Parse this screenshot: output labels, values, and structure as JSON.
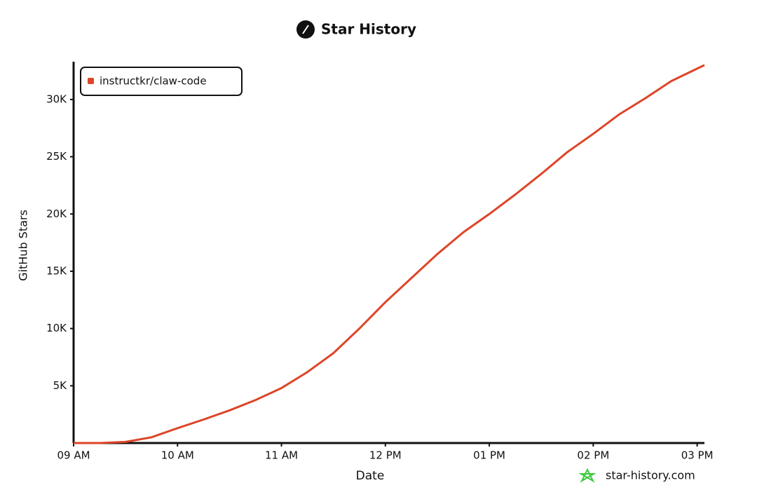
{
  "chart_data": {
    "type": "line",
    "title": "Star History",
    "xlabel": "Date",
    "ylabel": "GitHub Stars",
    "watermark": "star-history.com",
    "x": [
      9.0,
      9.25,
      9.5,
      9.75,
      10.0,
      10.25,
      10.5,
      10.75,
      11.0,
      11.25,
      11.5,
      11.75,
      12.0,
      12.25,
      12.5,
      12.75,
      13.0,
      13.25,
      13.5,
      13.75,
      14.0,
      14.25,
      14.5,
      14.75,
      15.07
    ],
    "series": [
      {
        "name": "instructkr/claw-code",
        "color": "#dd4528",
        "values": [
          0,
          0,
          100,
          500,
          1300,
          2050,
          2850,
          3750,
          4800,
          6200,
          7850,
          10000,
          12300,
          14400,
          16500,
          18400,
          20000,
          21700,
          23500,
          25400,
          27000,
          28700,
          30100,
          31600,
          33000
        ]
      }
    ],
    "xlim": [
      9.0,
      15.07
    ],
    "ylim": [
      0,
      33300
    ],
    "xticks": [
      {
        "value": 9,
        "label": "09 AM"
      },
      {
        "value": 10,
        "label": "10 AM"
      },
      {
        "value": 11,
        "label": "11 AM"
      },
      {
        "value": 12,
        "label": "12 PM"
      },
      {
        "value": 13,
        "label": "01 PM"
      },
      {
        "value": 14,
        "label": "02 PM"
      },
      {
        "value": 15,
        "label": "03 PM"
      }
    ],
    "yticks": [
      {
        "value": 5000,
        "label": "5K"
      },
      {
        "value": 10000,
        "label": "10K"
      },
      {
        "value": 15000,
        "label": "15K"
      },
      {
        "value": 20000,
        "label": "20K"
      },
      {
        "value": 25000,
        "label": "25K"
      },
      {
        "value": 30000,
        "label": "30K"
      }
    ],
    "legend": "top-left",
    "grid": false
  }
}
